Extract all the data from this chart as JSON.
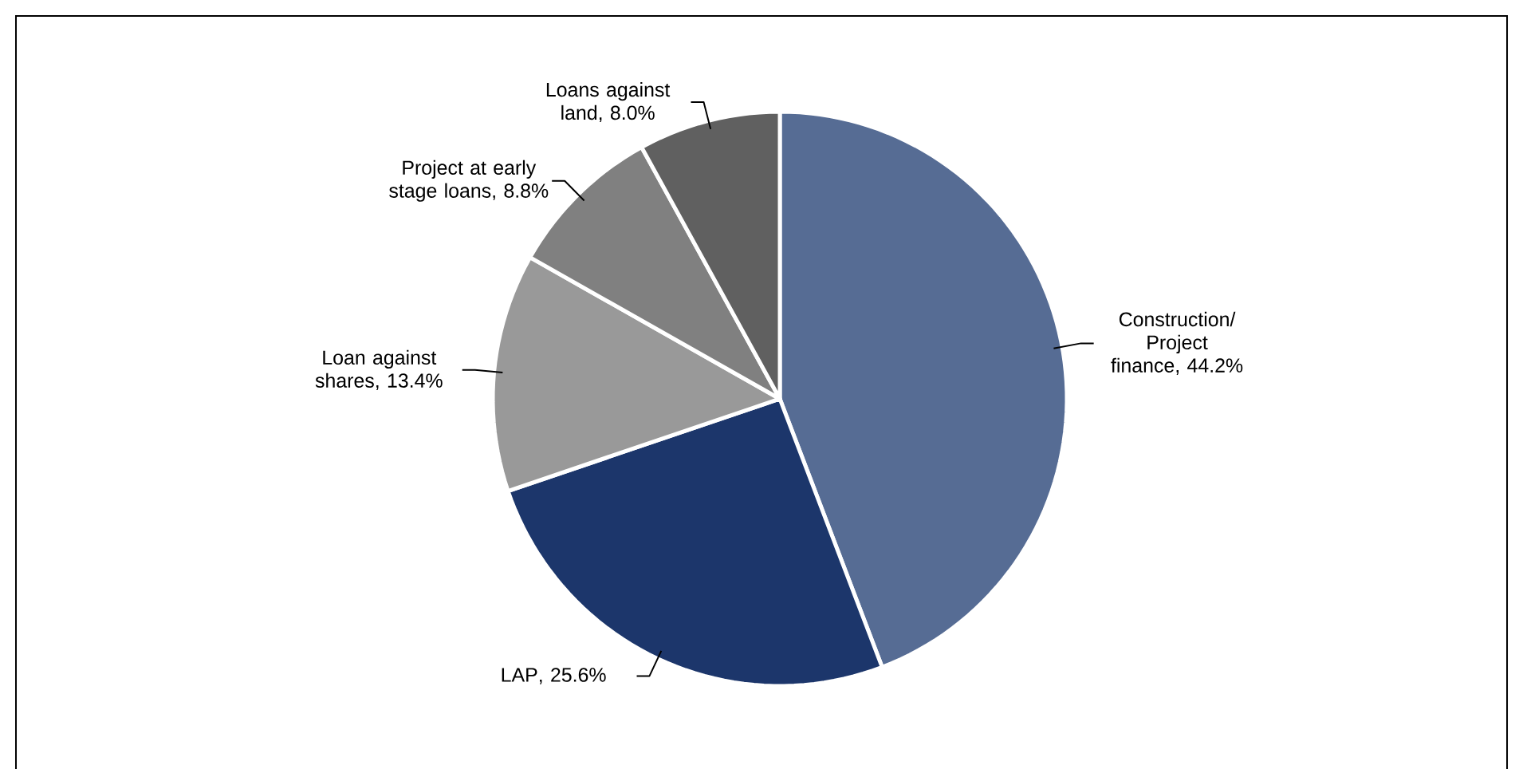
{
  "chart_data": {
    "type": "pie",
    "categories": [
      "Construction/ Project finance",
      "LAP",
      "Loan against shares",
      "Project at early stage loans",
      "Loans against land"
    ],
    "values": [
      44.2,
      25.6,
      13.4,
      8.8,
      8.0
    ],
    "value_labels": [
      ", 44.2%",
      ", 25.6%",
      ", 13.4%",
      ", 8.8%",
      ", 8.0%"
    ],
    "colors": [
      "#566c94",
      "#1c366b",
      "#999999",
      "#808080",
      "#606060"
    ]
  }
}
